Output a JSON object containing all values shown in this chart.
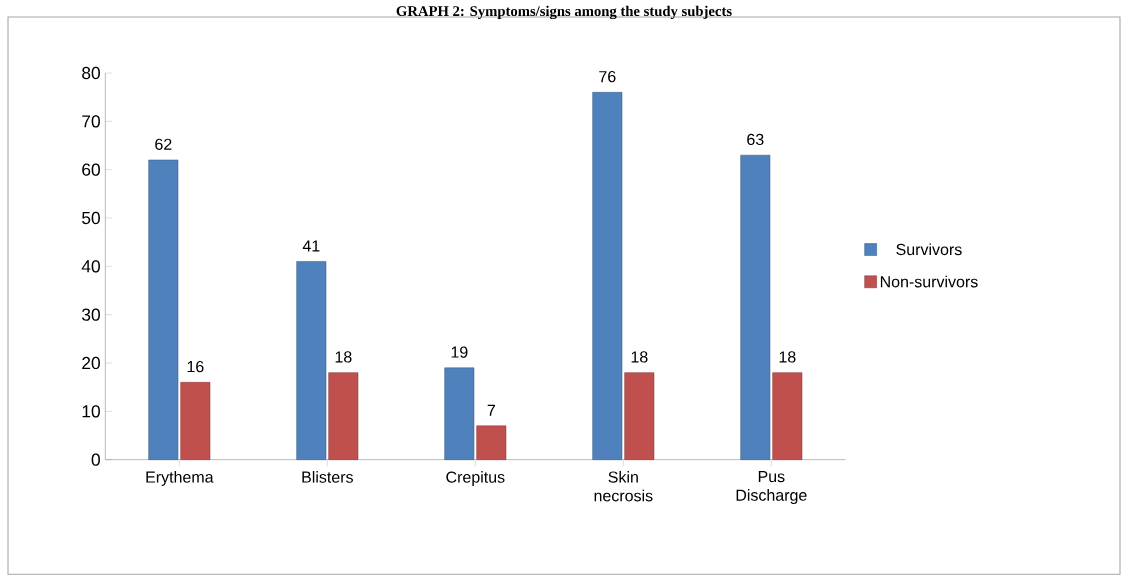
{
  "chart_data": {
    "type": "bar",
    "title": "GRAPH 2: Symptoms/signs among the study subjects",
    "categories": [
      "Erythema",
      "Blisters",
      "Crepitus",
      "Skin necrosis",
      "Pus Discharge"
    ],
    "series": [
      {
        "name": "Survivors",
        "color": "#4f81bd",
        "values": [
          62,
          41,
          19,
          76,
          63
        ]
      },
      {
        "name": "Non-survivors",
        "color": "#c0504d",
        "values": [
          16,
          18,
          7,
          18,
          18
        ]
      }
    ],
    "ylim": [
      0,
      80
    ],
    "yticks": [
      0,
      10,
      20,
      30,
      40,
      50,
      60,
      70,
      80
    ],
    "data_labels": true,
    "legend": "right",
    "grid": false
  }
}
